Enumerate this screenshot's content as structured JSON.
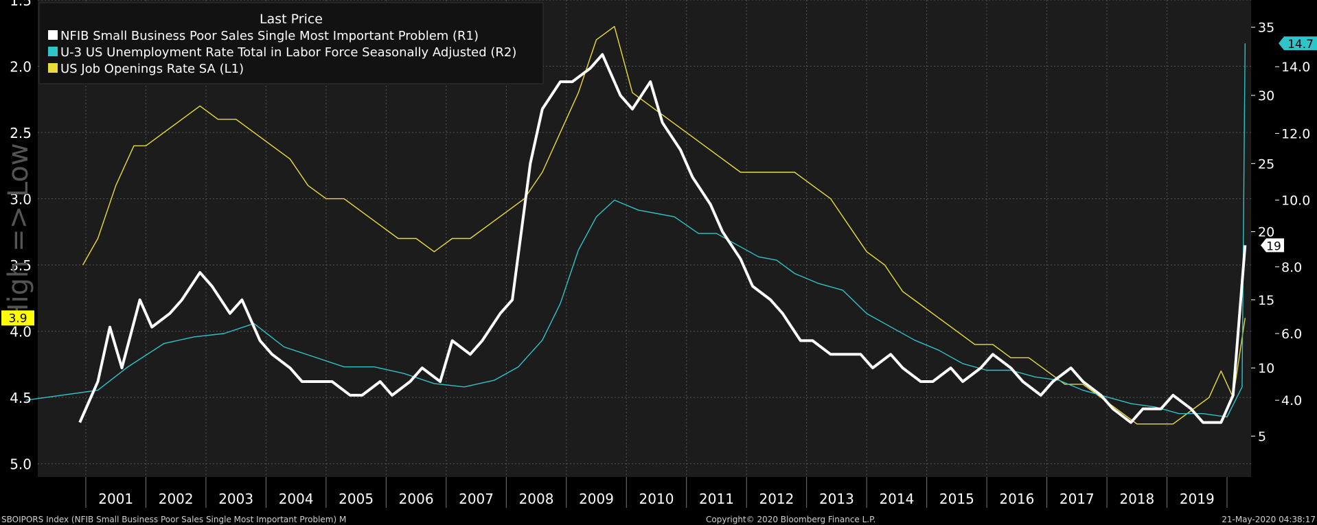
{
  "chart_data": {
    "type": "line",
    "title": "",
    "legend": {
      "header": "Last Price",
      "placement": "top-left",
      "entries": [
        {
          "label": "NFIB Small Business Poor Sales Single Most Important Problem  (R1)",
          "color": "#ffffff"
        },
        {
          "label": "U-3 US Unemployment Rate Total in Labor Force Seasonally Adjusted  (R2)",
          "color": "#2fc4c8"
        },
        {
          "label": "US Job Openings Rate SA  (L1)",
          "color": "#e8dc3c"
        }
      ]
    },
    "x_axis": {
      "labels": [
        "2001",
        "2002",
        "2003",
        "2004",
        "2005",
        "2006",
        "2007",
        "2008",
        "2009",
        "2010",
        "2011",
        "2012",
        "2013",
        "2014",
        "2015",
        "2016",
        "2017",
        "2018",
        "2019"
      ],
      "range": [
        2000.2,
        2020.4
      ]
    },
    "y_left": {
      "label": "High => Low",
      "inverted": true,
      "range": [
        1.5,
        5.1
      ],
      "ticks": [
        "1.5",
        "2.0",
        "2.5",
        "3.0",
        "3.5",
        "4.0",
        "4.5",
        "5.0"
      ],
      "last_value_label": "3.9"
    },
    "y_right1": {
      "range": [
        2,
        37
      ],
      "ticks": [
        "5",
        "10",
        "15",
        "20",
        "25",
        "30",
        "35"
      ],
      "last_value_label": "19"
    },
    "y_right2": {
      "range": [
        1.7,
        16.0
      ],
      "ticks": [
        "4.0",
        "6.0",
        "8.0",
        "10.0",
        "12.0",
        "14.0"
      ],
      "last_value_label": "14.7"
    },
    "series": [
      {
        "name": "NFIB Small Business Poor Sales Single Most Important Problem",
        "axis": "R1",
        "color": "#ffffff",
        "x": [
          2000.9,
          2001.2,
          2001.4,
          2001.6,
          2001.9,
          2002.1,
          2002.4,
          2002.6,
          2002.9,
          2003.1,
          2003.4,
          2003.6,
          2003.9,
          2004.1,
          2004.4,
          2004.6,
          2004.9,
          2005.1,
          2005.4,
          2005.6,
          2005.9,
          2006.1,
          2006.4,
          2006.6,
          2006.9,
          2007.1,
          2007.4,
          2007.6,
          2007.9,
          2008.1,
          2008.4,
          2008.6,
          2008.9,
          2009.1,
          2009.4,
          2009.6,
          2009.9,
          2010.1,
          2010.4,
          2010.6,
          2010.9,
          2011.1,
          2011.4,
          2011.6,
          2011.9,
          2012.1,
          2012.4,
          2012.6,
          2012.9,
          2013.1,
          2013.4,
          2013.6,
          2013.9,
          2014.1,
          2014.4,
          2014.6,
          2014.9,
          2015.1,
          2015.4,
          2015.6,
          2015.9,
          2016.1,
          2016.4,
          2016.6,
          2016.9,
          2017.1,
          2017.4,
          2017.6,
          2017.9,
          2018.1,
          2018.4,
          2018.6,
          2018.9,
          2019.1,
          2019.4,
          2019.6,
          2019.9,
          2020.1,
          2020.3
        ],
        "values": [
          6,
          9,
          13,
          10,
          15,
          13,
          14,
          15,
          17,
          16,
          14,
          15,
          12,
          11,
          10,
          9,
          9,
          9,
          8,
          8,
          9,
          8,
          9,
          10,
          9,
          12,
          11,
          12,
          14,
          15,
          25,
          29,
          31,
          31,
          32,
          33,
          30,
          29,
          31,
          28,
          26,
          24,
          22,
          20,
          18,
          16,
          15,
          14,
          12,
          12,
          11,
          11,
          11,
          10,
          11,
          10,
          9,
          9,
          10,
          9,
          10,
          11,
          10,
          9,
          8,
          9,
          10,
          9,
          8,
          7,
          6,
          7,
          7,
          8,
          7,
          6,
          6,
          8,
          19
        ]
      },
      {
        "name": "U-3 US Unemployment Rate Total in Labor Force Seasonally Adjusted",
        "axis": "R2",
        "color": "#2fc4c8",
        "x": [
          2000.0,
          2001.2,
          2001.7,
          2002.3,
          2002.8,
          2003.3,
          2003.8,
          2004.3,
          2004.8,
          2005.3,
          2005.8,
          2006.3,
          2006.8,
          2007.3,
          2007.8,
          2008.2,
          2008.6,
          2008.9,
          2009.2,
          2009.5,
          2009.8,
          2010.2,
          2010.5,
          2010.8,
          2011.2,
          2011.5,
          2011.8,
          2012.2,
          2012.5,
          2012.8,
          2013.2,
          2013.6,
          2014.0,
          2014.4,
          2014.8,
          2015.2,
          2015.6,
          2016.0,
          2016.4,
          2016.8,
          2017.2,
          2017.6,
          2018.0,
          2018.4,
          2018.8,
          2019.2,
          2019.6,
          2020.0,
          2020.25,
          2020.3
        ],
        "values": [
          4.0,
          4.3,
          5.0,
          5.7,
          5.9,
          6.0,
          6.3,
          5.6,
          5.3,
          5.0,
          5.0,
          4.8,
          4.5,
          4.4,
          4.6,
          5.0,
          5.8,
          6.9,
          8.5,
          9.5,
          10.0,
          9.7,
          9.6,
          9.5,
          9.0,
          9.0,
          8.7,
          8.3,
          8.2,
          7.8,
          7.5,
          7.3,
          6.6,
          6.2,
          5.8,
          5.5,
          5.1,
          4.9,
          4.9,
          4.7,
          4.6,
          4.3,
          4.1,
          3.9,
          3.8,
          3.6,
          3.6,
          3.5,
          4.4,
          14.7
        ]
      },
      {
        "name": "US Job Openings Rate SA",
        "axis": "L1",
        "color": "#e8dc3c",
        "x": [
          2000.95,
          2001.2,
          2001.5,
          2001.8,
          2002.0,
          2002.3,
          2002.6,
          2002.9,
          2003.2,
          2003.5,
          2003.8,
          2004.1,
          2004.4,
          2004.7,
          2005.0,
          2005.3,
          2005.6,
          2005.9,
          2006.2,
          2006.5,
          2006.8,
          2007.1,
          2007.4,
          2007.7,
          2008.0,
          2008.3,
          2008.6,
          2008.9,
          2009.2,
          2009.5,
          2009.8,
          2010.1,
          2010.4,
          2010.7,
          2011.0,
          2011.3,
          2011.6,
          2011.9,
          2012.2,
          2012.5,
          2012.8,
          2013.1,
          2013.4,
          2013.7,
          2014.0,
          2014.3,
          2014.6,
          2014.9,
          2015.2,
          2015.5,
          2015.8,
          2016.1,
          2016.4,
          2016.7,
          2017.0,
          2017.3,
          2017.6,
          2017.9,
          2018.2,
          2018.5,
          2018.8,
          2019.1,
          2019.4,
          2019.7,
          2019.9,
          2020.1,
          2020.3
        ],
        "values": [
          3.5,
          3.3,
          2.9,
          2.6,
          2.6,
          2.5,
          2.4,
          2.3,
          2.4,
          2.4,
          2.5,
          2.6,
          2.7,
          2.9,
          3.0,
          3.0,
          3.1,
          3.2,
          3.3,
          3.3,
          3.4,
          3.3,
          3.3,
          3.2,
          3.1,
          3.0,
          2.8,
          2.5,
          2.2,
          1.8,
          1.7,
          2.2,
          2.3,
          2.4,
          2.5,
          2.6,
          2.7,
          2.8,
          2.8,
          2.8,
          2.8,
          2.9,
          3.0,
          3.2,
          3.4,
          3.5,
          3.7,
          3.8,
          3.9,
          4.0,
          4.1,
          4.1,
          4.2,
          4.2,
          4.3,
          4.4,
          4.4,
          4.5,
          4.6,
          4.7,
          4.7,
          4.7,
          4.6,
          4.5,
          4.3,
          4.5,
          3.9
        ]
      }
    ]
  },
  "footer": {
    "left": "SBOIPORS Index (NFIB Small Business Poor Sales Single Most Important Problem)  M",
    "center": "Copyright© 2020 Bloomberg Finance L.P.",
    "right": "21-May-2020 04:38:17"
  }
}
